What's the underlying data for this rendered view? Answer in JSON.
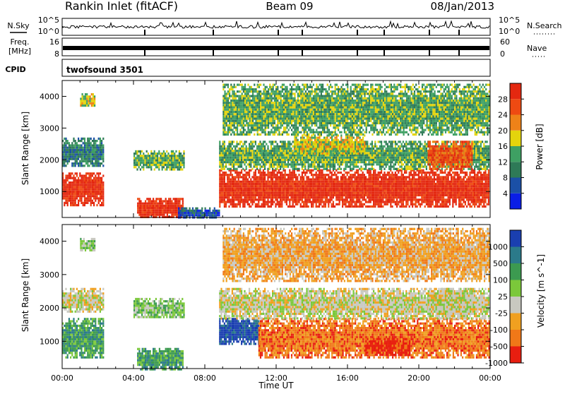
{
  "header": {
    "station": "Rankin Inlet (fitACF)",
    "beam": "Beam 09",
    "date": "08/Jan/2013"
  },
  "noise_panel": {
    "left_label": "N.Sky",
    "right_label": "N.Search",
    "left_ticks": [
      "10^5",
      "10^0"
    ],
    "right_ticks": [
      "10^5",
      "10^0"
    ]
  },
  "freq_panel": {
    "left_label_line1": "Freq.",
    "left_label_line2": "[MHz]",
    "right_label": "Nave",
    "left_ticks": [
      "16",
      "8"
    ],
    "right_ticks": [
      "60",
      "0"
    ]
  },
  "cpid_panel": {
    "label": "CPID",
    "value": "twofsound 3501"
  },
  "chart_data": [
    {
      "type": "heatmap",
      "name": "power",
      "ylabel": "Slant Range [km]",
      "xlabel": "",
      "ylim": [
        180,
        4500
      ],
      "yticks": [
        "1000",
        "2000",
        "3000",
        "4000"
      ],
      "xlim": [
        0,
        24
      ],
      "colorbar_label": "Power [dB]",
      "colorbar_ticks": [
        "4",
        "8",
        "12",
        "16",
        "20",
        "24",
        "28"
      ],
      "colors": [
        "#0a1ee6",
        "#1b50a6",
        "#2e7a57",
        "#3ea063",
        "#e4d40c",
        "#ee8218",
        "#ee4a12",
        "#e42810"
      ],
      "regions": [
        {
          "t0": 0.0,
          "t1": 2.3,
          "r0": 600,
          "r1": 1600,
          "level": 7
        },
        {
          "t0": 0.0,
          "t1": 2.3,
          "r0": 1800,
          "r1": 2700,
          "level": 2
        },
        {
          "t0": 1.0,
          "t1": 1.8,
          "r0": 3700,
          "r1": 4100,
          "level": 4
        },
        {
          "t0": 4.0,
          "t1": 6.8,
          "r0": 1700,
          "r1": 2300,
          "level": 3
        },
        {
          "t0": 4.2,
          "t1": 6.8,
          "r0": 180,
          "r1": 800,
          "level": 7
        },
        {
          "t0": 6.5,
          "t1": 8.8,
          "r0": 180,
          "r1": 500,
          "level": 1
        },
        {
          "t0": 8.8,
          "t1": 23.9,
          "r0": 500,
          "r1": 1700,
          "level": 7
        },
        {
          "t0": 8.8,
          "t1": 23.9,
          "r0": 1700,
          "r1": 2600,
          "level": 3
        },
        {
          "t0": 13.0,
          "t1": 17.0,
          "r0": 2200,
          "r1": 2800,
          "level": 4
        },
        {
          "t0": 20.5,
          "t1": 23.0,
          "r0": 1700,
          "r1": 2600,
          "level": 6
        },
        {
          "t0": 9.0,
          "t1": 23.9,
          "r0": 2800,
          "r1": 4400,
          "level": 3
        }
      ]
    },
    {
      "type": "heatmap",
      "name": "velocity",
      "ylabel": "Slant Range [km]",
      "xlabel": "Time UT",
      "ylim": [
        180,
        4500
      ],
      "yticks": [
        "1000",
        "2000",
        "3000",
        "4000"
      ],
      "xlim": [
        0,
        24
      ],
      "xticks": [
        "00:00",
        "04:00",
        "08:00",
        "12:00",
        "16:00",
        "20:00",
        "00:00"
      ],
      "colorbar_label": "Velocity [m s^-1]",
      "colorbar_ticks": [
        "1000",
        "500",
        "100",
        "25",
        "-25",
        "-100",
        "-500",
        "-1000"
      ],
      "colors": [
        "#1a3fb0",
        "#2b7a8a",
        "#3c9a50",
        "#7bc83a",
        "#c8c8c0",
        "#f0a020",
        "#f07818",
        "#e81e10"
      ],
      "regions": [
        {
          "t0": 0.0,
          "t1": 2.3,
          "r0": 500,
          "r1": 1700,
          "level": 2
        },
        {
          "t0": 0.0,
          "t1": 2.3,
          "r0": 1900,
          "r1": 2600,
          "level": 4
        },
        {
          "t0": 1.0,
          "t1": 1.8,
          "r0": 3700,
          "r1": 4100,
          "level": 3
        },
        {
          "t0": 4.0,
          "t1": 6.8,
          "r0": 1700,
          "r1": 2300,
          "level": 3
        },
        {
          "t0": 4.2,
          "t1": 6.8,
          "r0": 180,
          "r1": 800,
          "level": 2
        },
        {
          "t0": 8.8,
          "t1": 11.0,
          "r0": 900,
          "r1": 1700,
          "level": 0
        },
        {
          "t0": 11.0,
          "t1": 23.9,
          "r0": 500,
          "r1": 1700,
          "level": 6
        },
        {
          "t0": 17.0,
          "t1": 19.5,
          "r0": 600,
          "r1": 1100,
          "level": 7
        },
        {
          "t0": 8.8,
          "t1": 23.9,
          "r0": 1700,
          "r1": 2600,
          "level": 4
        },
        {
          "t0": 20.5,
          "t1": 23.0,
          "r0": 1700,
          "r1": 2600,
          "level": 4
        },
        {
          "t0": 9.0,
          "t1": 23.9,
          "r0": 2800,
          "r1": 4400,
          "level": 5
        }
      ]
    }
  ]
}
